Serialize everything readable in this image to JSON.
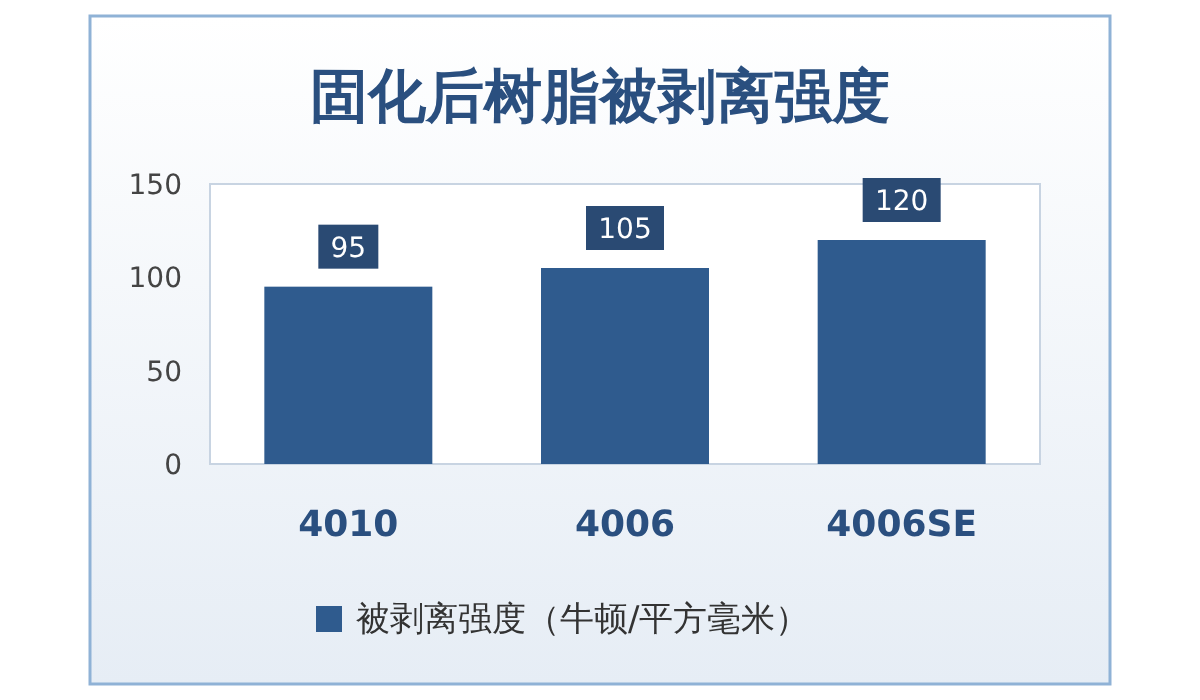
{
  "chart_data": {
    "type": "bar",
    "title": "固化后树脂被剥离强度",
    "categories": [
      "4010",
      "4006",
      "4006SE"
    ],
    "series": [
      {
        "name": "被剥离强度（牛顿/平方毫米）",
        "color": "#2f5b8e",
        "values": [
          95,
          105,
          120
        ]
      }
    ],
    "ylim": [
      0,
      150
    ],
    "yticks": [
      0,
      50,
      100,
      150
    ],
    "data_labels": true,
    "legend": "bottom"
  }
}
